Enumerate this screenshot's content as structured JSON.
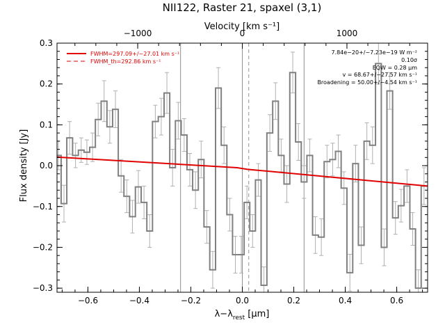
{
  "chart_data": {
    "type": "line",
    "title": "NII122, Raster 21, spaxel (3,1)",
    "xlabel_main": "λ−λ",
    "xlabel_sub": "rest",
    "xlabel_unit": " [μm]",
    "top_axis_label": "Velocity [km s⁻¹]",
    "ylabel": "Flux density [Jy]",
    "xlim": [
      -0.72,
      0.72
    ],
    "ylim": [
      -0.31,
      0.3
    ],
    "xticks": [
      -0.6,
      -0.4,
      -0.2,
      0.0,
      0.2,
      0.4,
      0.6
    ],
    "xtick_labels": [
      "−0.6",
      "−0.4",
      "−0.2",
      "0.0",
      "0.2",
      "0.4",
      "0.6"
    ],
    "yticks": [
      -0.3,
      -0.2,
      -0.1,
      0.0,
      0.1,
      0.2,
      0.3
    ],
    "ytick_labels": [
      "−0.3",
      "−0.2",
      "−0.1",
      "0.0",
      "0.1",
      "0.2",
      "0.3"
    ],
    "top_ticks": [
      -1000,
      0,
      1000
    ],
    "top_tick_labels": [
      "−1000",
      "0",
      "1000"
    ],
    "km_per_micron": 2460,
    "legend": [
      {
        "label": "FWHM=297.09+/−27.01 km s⁻¹",
        "style": "solid",
        "color": "#e00000"
      },
      {
        "label": "FWHM_th=292.86 km s⁻¹",
        "style": "dashed",
        "color": "#e00000"
      }
    ],
    "annotations": [
      "7.84e−20+/−7.23e−19 W m⁻²",
      "0.10σ",
      "EQW = 0.28 μm",
      "v = 68.67+/−27.57 km s⁻¹",
      "Broadening = 50.00+/−4.54 km s⁻¹"
    ],
    "vertical_lines": {
      "solid": [
        -0.24,
        0.0,
        0.24
      ],
      "dashed": [
        0.025
      ]
    },
    "step_series": {
      "name": "",
      "x": [
        -0.715,
        -0.693,
        -0.671,
        -0.648,
        -0.626,
        -0.604,
        -0.582,
        -0.56,
        -0.537,
        -0.515,
        -0.493,
        -0.471,
        -0.449,
        -0.427,
        -0.404,
        -0.382,
        -0.36,
        -0.338,
        -0.315,
        -0.293,
        -0.271,
        -0.249,
        -0.226,
        -0.204,
        -0.182,
        -0.16,
        -0.138,
        -0.115,
        -0.093,
        -0.071,
        -0.049,
        -0.027,
        -0.004,
        0.018,
        0.04,
        0.062,
        0.084,
        0.107,
        0.129,
        0.151,
        0.173,
        0.196,
        0.218,
        0.24,
        0.262,
        0.284,
        0.307,
        0.329,
        0.351,
        0.373,
        0.395,
        0.418,
        0.44,
        0.462,
        0.484,
        0.506,
        0.529,
        0.551,
        0.573,
        0.595,
        0.617,
        0.64,
        0.662,
        0.684,
        0.706
      ],
      "y": [
        0.025,
        -0.093,
        0.068,
        0.025,
        0.038,
        0.033,
        0.045,
        0.113,
        0.158,
        0.095,
        0.138,
        -0.025,
        -0.075,
        -0.125,
        -0.052,
        -0.09,
        -0.16,
        0.108,
        0.12,
        0.178,
        -0.005,
        0.11,
        0.075,
        -0.01,
        -0.06,
        0.015,
        -0.15,
        -0.255,
        0.19,
        0.05,
        -0.12,
        -0.218,
        -0.218,
        -0.09,
        -0.16,
        -0.035,
        -0.293,
        0.08,
        0.158,
        0.025,
        -0.045,
        0.228,
        0.058,
        -0.04,
        0.025,
        -0.17,
        -0.175,
        0.01,
        0.015,
        0.035,
        -0.055,
        -0.262,
        0.005,
        -0.195,
        0.06,
        0.05,
        0.25,
        -0.2,
        0.183,
        -0.128,
        -0.098,
        -0.05,
        -0.155,
        -0.3,
        -0.05
      ],
      "err": [
        0.035,
        0.045,
        0.04,
        0.03,
        0.03,
        0.03,
        0.035,
        0.04,
        0.05,
        0.04,
        0.045,
        0.04,
        0.04,
        0.04,
        0.04,
        0.04,
        0.04,
        0.04,
        0.045,
        0.05,
        0.045,
        0.045,
        0.04,
        0.04,
        0.045,
        0.045,
        0.04,
        0.045,
        0.05,
        0.045,
        0.04,
        0.045,
        0.045,
        0.04,
        0.04,
        0.04,
        0.045,
        0.045,
        0.045,
        0.04,
        0.045,
        0.05,
        0.045,
        0.04,
        0.04,
        0.045,
        0.045,
        0.04,
        0.04,
        0.04,
        0.04,
        0.045,
        0.045,
        0.045,
        0.045,
        0.045,
        0.05,
        0.045,
        0.045,
        0.04,
        0.04,
        0.04,
        0.04,
        0.045,
        0.045
      ],
      "color": "#808080"
    },
    "fit_line": {
      "name": "",
      "x": [
        -0.72,
        -0.02,
        0.02,
        0.72
      ],
      "y": [
        0.021,
        -0.005,
        -0.009,
        -0.05
      ],
      "color": "#e00000"
    },
    "grid": false,
    "legend_position": "top-left"
  }
}
